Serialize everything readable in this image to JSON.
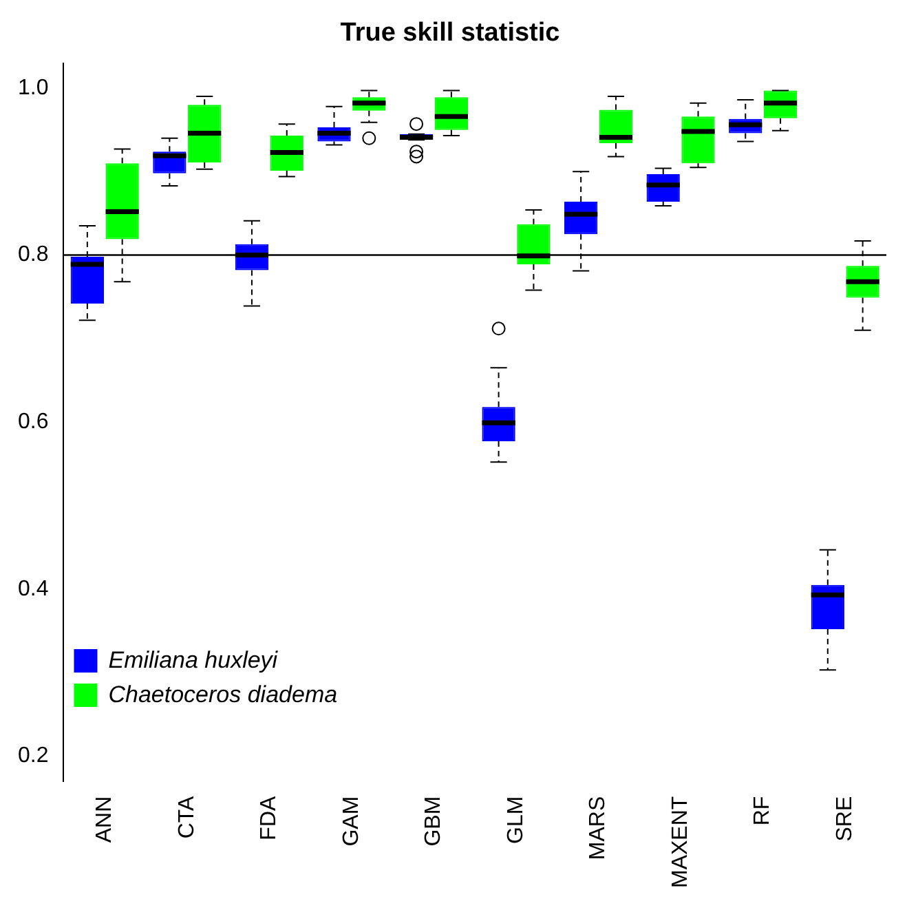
{
  "chart_data": {
    "type": "box",
    "title": "True skill statistic",
    "categories": [
      "ANN",
      "CTA",
      "FDA",
      "GAM",
      "GBM",
      "GLM",
      "MARS",
      "MAXENT",
      "RF",
      "SRE"
    ],
    "ylim": [
      0.17,
      1.03
    ],
    "yticks": [
      0.2,
      0.4,
      0.6,
      0.8,
      {
        "value": 1.0,
        "label": "1.0"
      }
    ],
    "grid": false,
    "legend": "bottom left",
    "ref_lines": [
      {
        "axis": "y",
        "value": 0.8,
        "color": "#000000",
        "line_style": "solid"
      }
    ],
    "series": [
      {
        "name": "Emiliana huxleyi",
        "color": "#0000ff",
        "boxes": [
          {
            "low": 0.722,
            "q1": 0.742,
            "median": 0.789,
            "q3": 0.798,
            "high": 0.835
          },
          {
            "low": 0.883,
            "q1": 0.898,
            "median": 0.919,
            "q3": 0.924,
            "high": 0.94
          },
          {
            "low": 0.739,
            "q1": 0.782,
            "median": 0.8,
            "q3": 0.813,
            "high": 0.841
          },
          {
            "low": 0.932,
            "q1": 0.936,
            "median": 0.946,
            "q3": 0.953,
            "high": 0.978
          },
          {
            "low": 0.938,
            "q1": 0.938,
            "median": 0.941,
            "q3": 0.945,
            "high": 0.945,
            "outliers": [
              0.957,
              0.924,
              0.918
            ]
          },
          {
            "low": 0.552,
            "q1": 0.577,
            "median": 0.599,
            "q3": 0.618,
            "high": 0.665,
            "outliers": [
              0.712
            ]
          },
          {
            "low": 0.781,
            "q1": 0.825,
            "median": 0.849,
            "q3": 0.864,
            "high": 0.9
          },
          {
            "low": 0.859,
            "q1": 0.864,
            "median": 0.884,
            "q3": 0.897,
            "high": 0.904
          },
          {
            "low": 0.936,
            "q1": 0.946,
            "median": 0.956,
            "q3": 0.963,
            "high": 0.986
          },
          {
            "low": 0.303,
            "q1": 0.352,
            "median": 0.393,
            "q3": 0.405,
            "high": 0.447
          }
        ]
      },
      {
        "name": "Chaetoceros diadema",
        "color": "#00ff00",
        "boxes": [
          {
            "low": 0.768,
            "q1": 0.819,
            "median": 0.852,
            "q3": 0.91,
            "high": 0.927
          },
          {
            "low": 0.903,
            "q1": 0.911,
            "median": 0.946,
            "q3": 0.98,
            "high": 0.99
          },
          {
            "low": 0.894,
            "q1": 0.901,
            "median": 0.923,
            "q3": 0.943,
            "high": 0.957
          },
          {
            "low": 0.959,
            "q1": 0.973,
            "median": 0.982,
            "q3": 0.989,
            "high": 0.997,
            "outliers": [
              0.94
            ]
          },
          {
            "low": 0.943,
            "q1": 0.95,
            "median": 0.966,
            "q3": 0.989,
            "high": 0.997
          },
          {
            "low": 0.758,
            "q1": 0.789,
            "median": 0.799,
            "q3": 0.837,
            "high": 0.854
          },
          {
            "low": 0.918,
            "q1": 0.934,
            "median": 0.941,
            "q3": 0.974,
            "high": 0.99
          },
          {
            "low": 0.905,
            "q1": 0.91,
            "median": 0.948,
            "q3": 0.966,
            "high": 0.982
          },
          {
            "low": 0.949,
            "q1": 0.964,
            "median": 0.982,
            "q3": 0.997,
            "high": 0.997
          },
          {
            "low": 0.71,
            "q1": 0.749,
            "median": 0.768,
            "q3": 0.787,
            "high": 0.817
          }
        ]
      }
    ]
  }
}
